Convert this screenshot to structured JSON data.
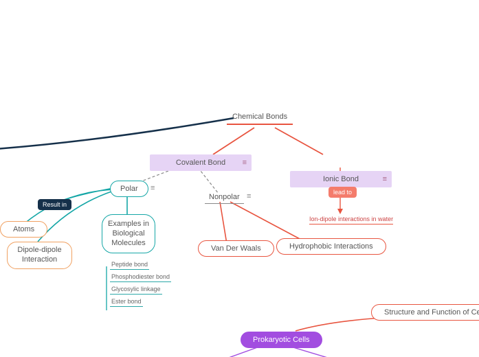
{
  "colors": {
    "red": "#e8543f",
    "teal": "#14a6a6",
    "navy": "#15304a",
    "orange": "#f0a060",
    "purple_light": "#e6d4f5",
    "purple_border": "#c9a6e8",
    "purple_strong": "#a24de0",
    "salmon": "#f47c6c",
    "gray": "#888888"
  },
  "root": "Chemical Bonds",
  "covalent": "Covalent Bond",
  "ionic": "Ionic Bond",
  "polar": "Polar",
  "nonpolar": "Nonpolar",
  "lead_to": "lead to",
  "ion_dipole": "Ion-dipole interactions in water",
  "vdw": "Van Der Waals",
  "hydrophobic": "Hydrophobic Interactions",
  "result_in": "Result in",
  "atoms": "Atoms",
  "dipole": "Dipole-dipole\nInteraction",
  "examples_title": "Examples in\nBiological\nMolecules",
  "examples": [
    "Peptide bond",
    "Phosphodiester bond",
    "Glycosylic linkage",
    "Ester bond"
  ],
  "cells_root": "Structure and Function of Cells",
  "prokaryotic": "Prokaryotic Cells"
}
